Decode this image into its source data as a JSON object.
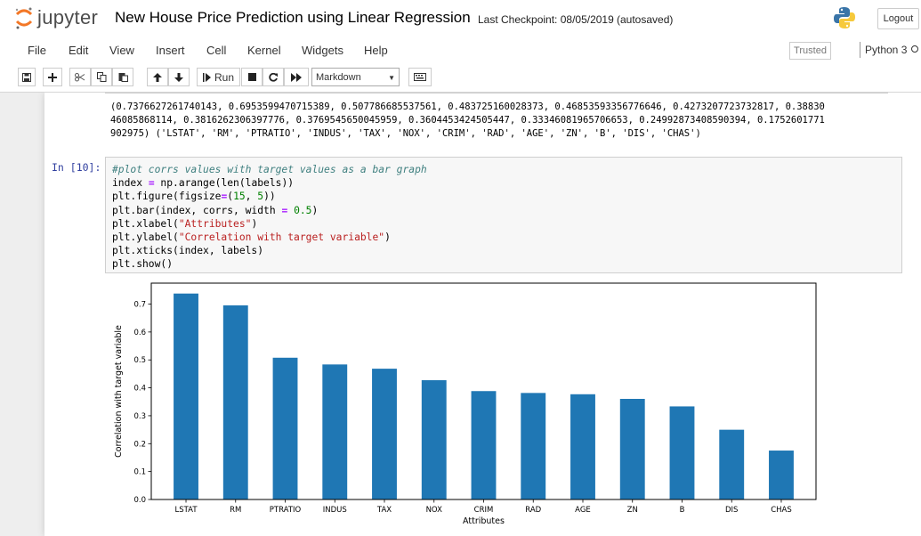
{
  "header": {
    "logo_text": "jupyter",
    "notebook_name": "New House Price Prediction using Linear Regression",
    "checkpoint": "Last Checkpoint: 08/05/2019",
    "autosave_status": "(autosaved)",
    "logout_label": "Logout"
  },
  "menu": {
    "items": [
      "File",
      "Edit",
      "View",
      "Insert",
      "Cell",
      "Kernel",
      "Widgets",
      "Help"
    ],
    "trusted_label": "Trusted",
    "kernel_name": "Python 3"
  },
  "toolbar": {
    "run_label": "Run",
    "cell_type": "Markdown",
    "icons": [
      "save-icon",
      "plus-icon",
      "cut-icon",
      "copy-icon",
      "paste-icon",
      "arrow-up-icon",
      "arrow-down-icon",
      "step-forward-icon",
      "stop-icon",
      "restart-icon",
      "fast-forward-icon",
      "keyboard-icon"
    ]
  },
  "cells": {
    "prev_output_lines": [
      "(0.7376627261740143, 0.6953599470715389, 0.507786685537561, 0.483725160028373, 0.46853593356776646, 0.4273207723732817, 0.38830",
      "46085868114, 0.3816262306397776, 0.3769545650045959, 0.3604453424505447, 0.33346081965706653, 0.24992873408590394, 0.1752601771",
      "902975) ('LSTAT', 'RM', 'PTRATIO', 'INDUS', 'TAX', 'NOX', 'CRIM', 'RAD', 'AGE', 'ZN', 'B', 'DIS', 'CHAS')"
    ],
    "code_cell": {
      "prompt": "In [10]:",
      "lines": [
        "#plot corrs values with target values as a bar graph",
        "index = np.arange(len(labels))",
        "plt.figure(figsize=(15, 5))",
        "plt.bar(index, corrs, width = 0.5)",
        "plt.xlabel(\"Attributes\")",
        "plt.ylabel(\"Correlation with target variable\")",
        "plt.xticks(index, labels)",
        "plt.show()"
      ]
    }
  },
  "chart_data": {
    "type": "bar",
    "categories": [
      "LSTAT",
      "RM",
      "PTRATIO",
      "INDUS",
      "TAX",
      "NOX",
      "CRIM",
      "RAD",
      "AGE",
      "ZN",
      "B",
      "DIS",
      "CHAS"
    ],
    "values": [
      0.7377,
      0.6954,
      0.5078,
      0.4837,
      0.4685,
      0.4273,
      0.3883,
      0.3816,
      0.377,
      0.3604,
      0.3335,
      0.2499,
      0.1753
    ],
    "xlabel": "Attributes",
    "ylabel": "Correlation with target variable",
    "ylim": [
      0,
      0.775
    ],
    "yticks": [
      "0.0",
      "0.1",
      "0.2",
      "0.3",
      "0.4",
      "0.5",
      "0.6",
      "0.7"
    ],
    "bar_color": "#1f77b4",
    "grid": false
  },
  "colors": {
    "prompt_in": "#303f9f",
    "code_bg": "#f7f7f7"
  }
}
